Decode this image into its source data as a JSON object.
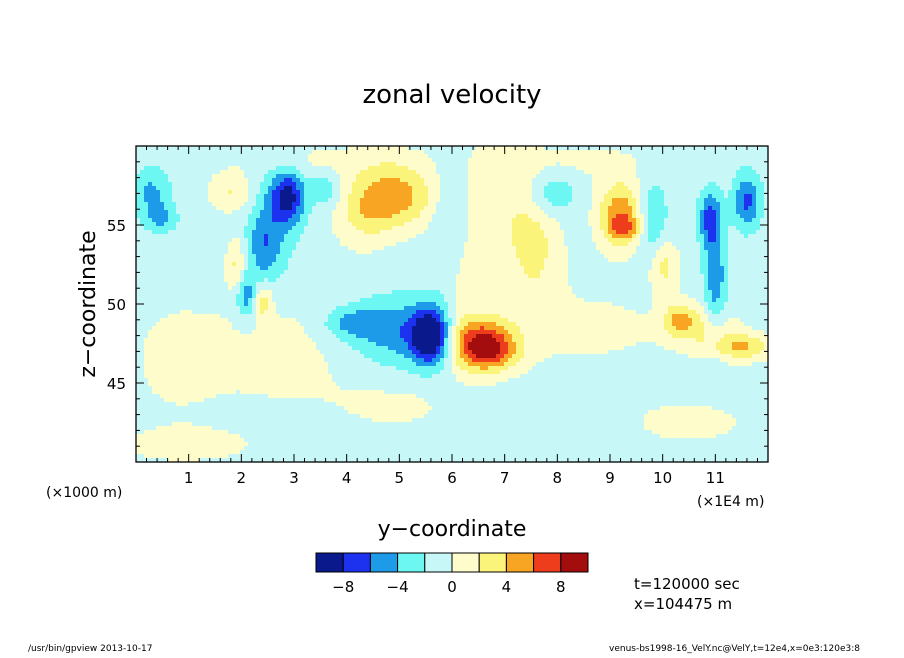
{
  "chart_data": {
    "type": "heatmap",
    "title": "zonal velocity",
    "xlabel": "y−coordinate",
    "ylabel": "z−coordinate",
    "x_unit_left": "(×1000 m)",
    "x_unit_right": "(×1E4 m)",
    "xlim": [
      0,
      12
    ],
    "ylim": [
      40,
      60
    ],
    "x_ticks": [
      1,
      2,
      3,
      4,
      5,
      6,
      7,
      8,
      9,
      10,
      11
    ],
    "x_tick_labels": [
      "1",
      "2",
      "3",
      "4",
      "5",
      "6",
      "7",
      "8",
      "9",
      "10",
      "11"
    ],
    "y_ticks": [
      45,
      50,
      55
    ],
    "y_tick_labels": [
      "45",
      "50",
      "55"
    ],
    "colorbar": {
      "levels": [
        -12,
        -8,
        -6,
        -4,
        -2,
        0,
        2,
        4,
        6,
        8,
        10,
        12
      ],
      "tick_values": [
        -8,
        -4,
        0,
        4,
        8
      ],
      "tick_labels": [
        "−8",
        "−4",
        "0",
        "4",
        "8"
      ],
      "colors": [
        "#0a1a8c",
        "#1d32ee",
        "#1e9be8",
        "#6df7f2",
        "#c8f7f7",
        "#fffccc",
        "#fbf47a",
        "#f8a523",
        "#ee3d1c",
        "#a30d0d"
      ]
    },
    "background_value": -1,
    "features": [
      {
        "x": 5.6,
        "z": 47.9,
        "amp": -9.5,
        "sx": 0.25,
        "sz": 1.2
      },
      {
        "x": 5.0,
        "z": 48.3,
        "amp": -4.5,
        "sx": 0.7,
        "sz": 1.5
      },
      {
        "x": 6.5,
        "z": 47.5,
        "amp": 8.5,
        "sx": 0.45,
        "sz": 1.2
      },
      {
        "x": 6.8,
        "z": 47.0,
        "amp": 3.5,
        "sx": 0.35,
        "sz": 0.8
      },
      {
        "x": 4.9,
        "z": 56.8,
        "amp": 6.0,
        "sx": 0.55,
        "sz": 1.4
      },
      {
        "x": 4.3,
        "z": 55.5,
        "amp": 2.5,
        "sx": 0.4,
        "sz": 1.5
      },
      {
        "x": 9.2,
        "z": 55.6,
        "amp": 6.8,
        "sx": 0.3,
        "sz": 1.5
      },
      {
        "x": 9.3,
        "z": 54.8,
        "amp": 3.0,
        "sx": 0.2,
        "sz": 0.5
      },
      {
        "x": 2.9,
        "z": 56.8,
        "amp": -7.0,
        "sx": 0.22,
        "sz": 1.2
      },
      {
        "x": 2.6,
        "z": 55.0,
        "amp": -3.0,
        "sx": 0.3,
        "sz": 2.5
      },
      {
        "x": 2.1,
        "z": 50.5,
        "amp": -4.5,
        "sx": 0.15,
        "sz": 1.0
      },
      {
        "x": 2.4,
        "z": 53.5,
        "amp": -3.0,
        "sx": 0.2,
        "sz": 1.5
      },
      {
        "x": 0.3,
        "z": 57.0,
        "amp": -3.5,
        "sx": 0.25,
        "sz": 1.2
      },
      {
        "x": 0.5,
        "z": 55.4,
        "amp": -3.0,
        "sx": 0.2,
        "sz": 0.6
      },
      {
        "x": 3.6,
        "z": 57.3,
        "amp": -3.0,
        "sx": 0.2,
        "sz": 0.8
      },
      {
        "x": 4.1,
        "z": 48.8,
        "amp": -3.2,
        "sx": 0.4,
        "sz": 0.7
      },
      {
        "x": 6.0,
        "z": 54.0,
        "amp": -3.3,
        "sx": 0.25,
        "sz": 3.5
      },
      {
        "x": 6.1,
        "z": 51.5,
        "amp": 3.0,
        "sx": 0.25,
        "sz": 2.5
      },
      {
        "x": 7.6,
        "z": 53.5,
        "amp": 3.0,
        "sx": 0.35,
        "sz": 2.5
      },
      {
        "x": 7.9,
        "z": 57.0,
        "amp": -3.2,
        "sx": 0.3,
        "sz": 1.0
      },
      {
        "x": 10.9,
        "z": 55.4,
        "amp": -5.5,
        "sx": 0.15,
        "sz": 1.2
      },
      {
        "x": 11.0,
        "z": 51.5,
        "amp": -4.5,
        "sx": 0.15,
        "sz": 2.5
      },
      {
        "x": 11.6,
        "z": 56.5,
        "amp": -5.5,
        "sx": 0.18,
        "sz": 1.2
      },
      {
        "x": 11.5,
        "z": 47.3,
        "amp": 5.0,
        "sx": 0.4,
        "sz": 0.6
      },
      {
        "x": 10.3,
        "z": 49.0,
        "amp": 4.5,
        "sx": 0.2,
        "sz": 0.7
      },
      {
        "x": 10.0,
        "z": 52.5,
        "amp": 4.0,
        "sx": 0.2,
        "sz": 1.2
      },
      {
        "x": 10.8,
        "z": 48.5,
        "amp": 3.0,
        "sx": 0.4,
        "sz": 1.0
      },
      {
        "x": 9.8,
        "z": 55.0,
        "amp": -3.2,
        "sx": 0.2,
        "sz": 2.0
      },
      {
        "x": 1.9,
        "z": 52.5,
        "amp": 3.2,
        "sx": 0.12,
        "sz": 1.2
      },
      {
        "x": 2.4,
        "z": 50.2,
        "amp": 4.0,
        "sx": 0.12,
        "sz": 0.8
      },
      {
        "x": 1.8,
        "z": 57.0,
        "amp": 3.0,
        "sx": 0.3,
        "sz": 0.8
      },
      {
        "x": 6.8,
        "z": 56.0,
        "amp": 2.5,
        "sx": 0.6,
        "sz": 3.0
      },
      {
        "x": 0.7,
        "z": 46.5,
        "amp": 1.2,
        "sx": 0.9,
        "sz": 4.0
      },
      {
        "x": 3.0,
        "z": 47.0,
        "amp": 1.5,
        "sx": 1.0,
        "sz": 3.0
      },
      {
        "x": 8.5,
        "z": 48.5,
        "amp": 1.4,
        "sx": 1.5,
        "sz": 2.0
      },
      {
        "x": 5.0,
        "z": 43.5,
        "amp": 1.3,
        "sx": 0.8,
        "sz": 1.2
      },
      {
        "x": 10.5,
        "z": 42.5,
        "amp": 1.3,
        "sx": 1.2,
        "sz": 1.5
      },
      {
        "x": 1.0,
        "z": 41.0,
        "amp": 1.3,
        "sx": 1.0,
        "sz": 0.8
      },
      {
        "x": 3.5,
        "z": 59.0,
        "amp": 1.4,
        "sx": 1.5,
        "sz": 0.9
      },
      {
        "x": 8.5,
        "z": 59.0,
        "amp": 1.3,
        "sx": 1.0,
        "sz": 0.9
      }
    ]
  },
  "info": {
    "time": "t=120000 sec",
    "position": "x=104475 m"
  },
  "footer": {
    "program": "/usr/bin/gpview  2013-10-17",
    "source": "venus-bs1998-16_VelY.nc@VelY,t=12e4,x=0e3:120e3:8"
  }
}
